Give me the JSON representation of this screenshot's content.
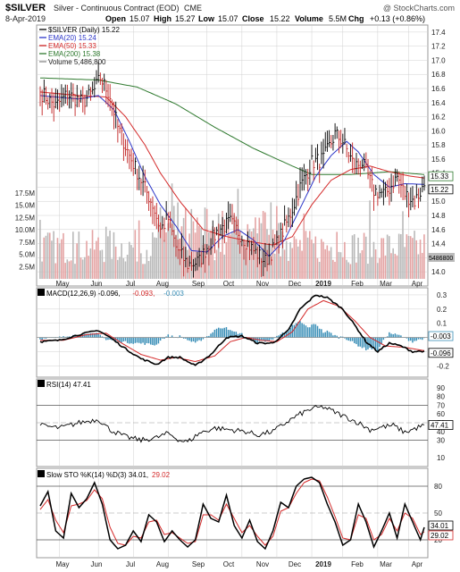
{
  "header": {
    "symbol": "$SILVER",
    "name": "Silver - Continuous Contract (EOD)",
    "exchange": "CME",
    "watermark": "@ StockCharts.com",
    "date": "8-Apr-2019",
    "open_label": "Open",
    "open": "15.07",
    "high_label": "High",
    "high": "15.27",
    "low_label": "Low",
    "low": "15.07",
    "close_label": "Close",
    "close": "15.22",
    "volume_label": "Volume",
    "volume": "5.5M",
    "chg_label": "Chg",
    "chg": "+0.13 (+0.86%)"
  },
  "colors": {
    "price": "#000000",
    "ema20": "#2b35c8",
    "ema50": "#d42a2a",
    "ema200": "#2f7a2f",
    "volume_up": "#e4a3a3",
    "volume_down": "#b9b9b9",
    "macd_hist": "#3a8fb7",
    "grid": "#d0d0d0"
  },
  "chart_data": [
    {
      "type": "line",
      "panel": "price",
      "legend": [
        {
          "label": "$SILVER (Daily) 15.22",
          "color": "#000000"
        },
        {
          "label": "EMA(20) 15.24",
          "color": "#2b35c8"
        },
        {
          "label": "EMA(50) 15.33",
          "color": "#d42a2a"
        },
        {
          "label": "EMA(200) 15.38",
          "color": "#2f7a2f"
        },
        {
          "label": "Volume 5,486,800",
          "color": "#888888"
        }
      ],
      "y_ticks": [
        "17.4",
        "17.2",
        "17.0",
        "16.8",
        "16.6",
        "16.4",
        "16.2",
        "16.0",
        "15.8",
        "15.6",
        "15.4",
        "15.2",
        "15.0",
        "14.8",
        "14.6",
        "14.4",
        "14.2",
        "14.0"
      ],
      "ylim": [
        13.9,
        17.5
      ],
      "volume_ticks": [
        "17.5M",
        "15.0M",
        "12.5M",
        "10.0M",
        "7.5M",
        "5.0M",
        "2.5M"
      ],
      "right_badges": [
        {
          "label": "15.33",
          "value": 15.33
        },
        {
          "label": "15.22",
          "value": 15.22
        }
      ],
      "volume_badge": "5486800",
      "x_labels": [
        "May",
        "Jun",
        "Jul",
        "Aug",
        "Sep",
        "Oct",
        "Nov",
        "Dec",
        "2019",
        "Feb",
        "Mar",
        "Apr"
      ],
      "anchors_close": [
        [
          0,
          16.55
        ],
        [
          8,
          16.35
        ],
        [
          14,
          16.52
        ],
        [
          22,
          16.4
        ],
        [
          28,
          16.58
        ],
        [
          31,
          16.75
        ],
        [
          36,
          16.5
        ],
        [
          40,
          16.05
        ],
        [
          46,
          15.65
        ],
        [
          52,
          15.3
        ],
        [
          58,
          14.95
        ],
        [
          62,
          14.6
        ],
        [
          66,
          14.75
        ],
        [
          70,
          14.35
        ],
        [
          76,
          14.1
        ],
        [
          82,
          14.15
        ],
        [
          86,
          14.35
        ],
        [
          92,
          14.6
        ],
        [
          98,
          14.7
        ],
        [
          104,
          14.5
        ],
        [
          110,
          14.3
        ],
        [
          116,
          14.15
        ],
        [
          122,
          14.4
        ],
        [
          128,
          14.75
        ],
        [
          134,
          15.2
        ],
        [
          140,
          15.55
        ],
        [
          146,
          15.6
        ],
        [
          152,
          15.95
        ],
        [
          156,
          15.85
        ],
        [
          162,
          15.5
        ],
        [
          166,
          15.55
        ],
        [
          172,
          15.15
        ],
        [
          178,
          15.1
        ],
        [
          184,
          15.35
        ],
        [
          188,
          15.1
        ],
        [
          193,
          15.0
        ],
        [
          198,
          15.22
        ]
      ],
      "anchors_ema20": [
        [
          0,
          16.5
        ],
        [
          20,
          16.45
        ],
        [
          30,
          16.5
        ],
        [
          38,
          16.3
        ],
        [
          46,
          15.85
        ],
        [
          54,
          15.35
        ],
        [
          62,
          14.95
        ],
        [
          70,
          14.65
        ],
        [
          78,
          14.3
        ],
        [
          86,
          14.28
        ],
        [
          94,
          14.5
        ],
        [
          102,
          14.6
        ],
        [
          110,
          14.45
        ],
        [
          118,
          14.22
        ],
        [
          126,
          14.45
        ],
        [
          134,
          14.9
        ],
        [
          142,
          15.35
        ],
        [
          150,
          15.65
        ],
        [
          158,
          15.85
        ],
        [
          164,
          15.7
        ],
        [
          172,
          15.38
        ],
        [
          180,
          15.2
        ],
        [
          188,
          15.25
        ],
        [
          198,
          15.24
        ]
      ],
      "anchors_ema50": [
        [
          0,
          16.55
        ],
        [
          20,
          16.5
        ],
        [
          34,
          16.48
        ],
        [
          44,
          16.2
        ],
        [
          54,
          15.8
        ],
        [
          62,
          15.4
        ],
        [
          72,
          15.0
        ],
        [
          84,
          14.6
        ],
        [
          96,
          14.5
        ],
        [
          110,
          14.42
        ],
        [
          120,
          14.38
        ],
        [
          130,
          14.5
        ],
        [
          140,
          14.95
        ],
        [
          150,
          15.3
        ],
        [
          160,
          15.45
        ],
        [
          170,
          15.5
        ],
        [
          180,
          15.42
        ],
        [
          190,
          15.36
        ],
        [
          198,
          15.33
        ]
      ],
      "anchors_ema200": [
        [
          0,
          16.75
        ],
        [
          30,
          16.72
        ],
        [
          50,
          16.62
        ],
        [
          70,
          16.38
        ],
        [
          90,
          16.05
        ],
        [
          110,
          15.75
        ],
        [
          130,
          15.5
        ],
        [
          140,
          15.38
        ],
        [
          160,
          15.38
        ],
        [
          180,
          15.42
        ],
        [
          198,
          15.38
        ]
      ]
    },
    {
      "type": "line",
      "panel": "macd",
      "legend": [
        {
          "label": "MACD(12,26,9) -0.096,",
          "color": "#000000"
        },
        {
          "label": "-0.093,",
          "color": "#d42a2a"
        },
        {
          "label": "-0.003",
          "color": "#3a8fb7"
        }
      ],
      "y_ticks": [
        "0.3",
        "0.2",
        "0.1",
        "0.0",
        "-0.1",
        "-0.2"
      ],
      "ylim": [
        -0.28,
        0.35
      ],
      "right_badges": [
        {
          "label": "-0.003",
          "value": -0.003
        },
        {
          "label": "-0.096",
          "value": -0.096
        }
      ],
      "anchors_macd": [
        [
          0,
          -0.03
        ],
        [
          10,
          -0.02
        ],
        [
          20,
          0.02
        ],
        [
          30,
          0.05
        ],
        [
          36,
          0.0
        ],
        [
          44,
          -0.08
        ],
        [
          52,
          -0.15
        ],
        [
          60,
          -0.19
        ],
        [
          66,
          -0.14
        ],
        [
          72,
          -0.14
        ],
        [
          80,
          -0.2
        ],
        [
          88,
          -0.12
        ],
        [
          96,
          0.0
        ],
        [
          104,
          0.01
        ],
        [
          112,
          -0.04
        ],
        [
          120,
          -0.04
        ],
        [
          128,
          0.05
        ],
        [
          134,
          0.2
        ],
        [
          142,
          0.3
        ],
        [
          148,
          0.28
        ],
        [
          156,
          0.2
        ],
        [
          162,
          0.09
        ],
        [
          168,
          -0.03
        ],
        [
          174,
          -0.1
        ],
        [
          180,
          -0.04
        ],
        [
          186,
          -0.06
        ],
        [
          192,
          -0.1
        ],
        [
          198,
          -0.096
        ]
      ],
      "anchors_signal": [
        [
          0,
          -0.02
        ],
        [
          12,
          -0.02
        ],
        [
          24,
          0.02
        ],
        [
          34,
          0.03
        ],
        [
          42,
          -0.04
        ],
        [
          52,
          -0.12
        ],
        [
          62,
          -0.16
        ],
        [
          70,
          -0.14
        ],
        [
          80,
          -0.17
        ],
        [
          90,
          -0.13
        ],
        [
          98,
          -0.03
        ],
        [
          106,
          0.0
        ],
        [
          114,
          -0.02
        ],
        [
          122,
          -0.03
        ],
        [
          130,
          0.04
        ],
        [
          138,
          0.2
        ],
        [
          146,
          0.26
        ],
        [
          154,
          0.22
        ],
        [
          162,
          0.12
        ],
        [
          170,
          0.0
        ],
        [
          178,
          -0.06
        ],
        [
          188,
          -0.07
        ],
        [
          198,
          -0.093
        ]
      ]
    },
    {
      "type": "line",
      "panel": "rsi",
      "legend": [
        {
          "label": "RSI(14) 47.41",
          "color": "#000000"
        }
      ],
      "y_ticks": [
        "90",
        "80",
        "70",
        "60",
        "50",
        "40",
        "30",
        "10"
      ],
      "ylim": [
        0,
        100
      ],
      "overbought": 70,
      "oversold": 30,
      "right_badges": [
        {
          "label": "47.41",
          "value": 47.41
        }
      ],
      "anchors": [
        [
          0,
          47
        ],
        [
          10,
          44
        ],
        [
          20,
          50
        ],
        [
          30,
          54
        ],
        [
          36,
          42
        ],
        [
          44,
          34
        ],
        [
          52,
          30
        ],
        [
          60,
          33
        ],
        [
          66,
          38
        ],
        [
          72,
          30
        ],
        [
          76,
          28
        ],
        [
          82,
          38
        ],
        [
          90,
          44
        ],
        [
          98,
          42
        ],
        [
          106,
          40
        ],
        [
          112,
          36
        ],
        [
          120,
          40
        ],
        [
          128,
          52
        ],
        [
          134,
          60
        ],
        [
          140,
          66
        ],
        [
          146,
          68
        ],
        [
          152,
          62
        ],
        [
          158,
          56
        ],
        [
          164,
          50
        ],
        [
          170,
          42
        ],
        [
          176,
          45
        ],
        [
          182,
          47
        ],
        [
          188,
          39
        ],
        [
          194,
          44
        ],
        [
          198,
          47.41
        ]
      ]
    },
    {
      "type": "line",
      "panel": "stochastic",
      "legend": [
        {
          "label": "Slow STO %K(14) %D(3) 34.01,",
          "color": "#000000"
        },
        {
          "label": "29.02",
          "color": "#d42a2a"
        }
      ],
      "y_ticks": [
        "80",
        "50",
        "20"
      ],
      "ylim": [
        0,
        100
      ],
      "overbought": 80,
      "oversold": 20,
      "right_badges": [
        {
          "label": "34.01",
          "value": 34.01
        },
        {
          "label": "29.02",
          "value": 29.02
        }
      ],
      "anchors_k": [
        [
          0,
          58
        ],
        [
          4,
          74
        ],
        [
          8,
          30
        ],
        [
          12,
          22
        ],
        [
          16,
          72
        ],
        [
          20,
          56
        ],
        [
          24,
          66
        ],
        [
          28,
          84
        ],
        [
          32,
          60
        ],
        [
          36,
          20
        ],
        [
          40,
          10
        ],
        [
          44,
          14
        ],
        [
          48,
          30
        ],
        [
          52,
          18
        ],
        [
          56,
          48
        ],
        [
          60,
          40
        ],
        [
          64,
          18
        ],
        [
          68,
          30
        ],
        [
          72,
          20
        ],
        [
          76,
          12
        ],
        [
          80,
          20
        ],
        [
          84,
          60
        ],
        [
          88,
          44
        ],
        [
          92,
          40
        ],
        [
          96,
          70
        ],
        [
          100,
          36
        ],
        [
          104,
          22
        ],
        [
          108,
          42
        ],
        [
          112,
          18
        ],
        [
          116,
          10
        ],
        [
          120,
          30
        ],
        [
          124,
          62
        ],
        [
          128,
          56
        ],
        [
          132,
          80
        ],
        [
          136,
          88
        ],
        [
          140,
          90
        ],
        [
          144,
          84
        ],
        [
          148,
          60
        ],
        [
          152,
          40
        ],
        [
          156,
          14
        ],
        [
          160,
          20
        ],
        [
          164,
          60
        ],
        [
          168,
          40
        ],
        [
          172,
          12
        ],
        [
          176,
          30
        ],
        [
          180,
          50
        ],
        [
          184,
          22
        ],
        [
          188,
          60
        ],
        [
          192,
          40
        ],
        [
          196,
          20
        ],
        [
          198,
          34.01
        ]
      ],
      "anchors_d": [
        [
          0,
          54
        ],
        [
          4,
          65
        ],
        [
          8,
          42
        ],
        [
          12,
          28
        ],
        [
          16,
          58
        ],
        [
          20,
          60
        ],
        [
          24,
          64
        ],
        [
          28,
          76
        ],
        [
          32,
          66
        ],
        [
          36,
          34
        ],
        [
          40,
          16
        ],
        [
          44,
          14
        ],
        [
          48,
          24
        ],
        [
          52,
          22
        ],
        [
          56,
          40
        ],
        [
          60,
          42
        ],
        [
          64,
          26
        ],
        [
          68,
          28
        ],
        [
          72,
          22
        ],
        [
          76,
          16
        ],
        [
          80,
          18
        ],
        [
          84,
          48
        ],
        [
          88,
          48
        ],
        [
          92,
          42
        ],
        [
          96,
          60
        ],
        [
          100,
          44
        ],
        [
          104,
          28
        ],
        [
          108,
          36
        ],
        [
          112,
          24
        ],
        [
          116,
          14
        ],
        [
          120,
          24
        ],
        [
          124,
          52
        ],
        [
          128,
          56
        ],
        [
          132,
          72
        ],
        [
          136,
          84
        ],
        [
          140,
          88
        ],
        [
          144,
          86
        ],
        [
          148,
          68
        ],
        [
          152,
          46
        ],
        [
          156,
          22
        ],
        [
          160,
          20
        ],
        [
          164,
          48
        ],
        [
          168,
          44
        ],
        [
          172,
          20
        ],
        [
          176,
          26
        ],
        [
          180,
          44
        ],
        [
          184,
          30
        ],
        [
          188,
          50
        ],
        [
          192,
          44
        ],
        [
          196,
          26
        ],
        [
          198,
          29.02
        ]
      ]
    }
  ]
}
